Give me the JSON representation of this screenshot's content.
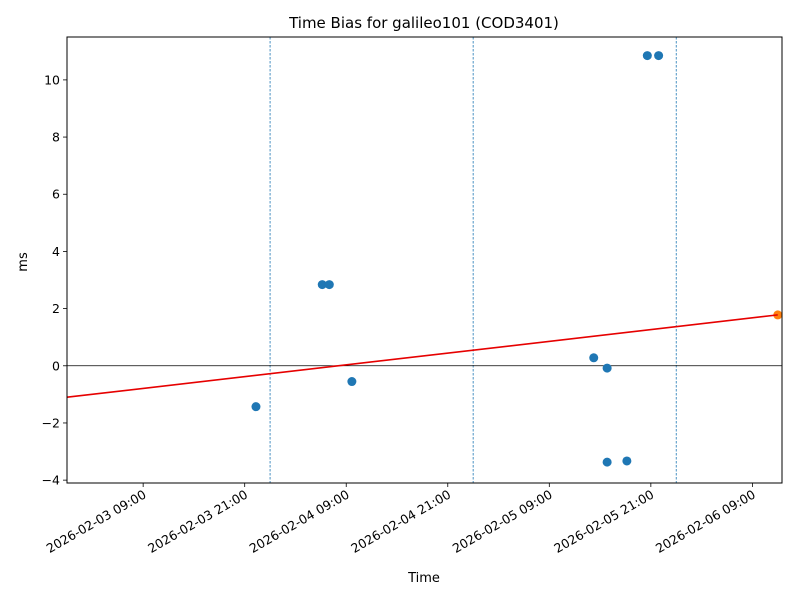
{
  "chart_data": {
    "type": "scatter",
    "title": "Time Bias for galileo101 (COD3401)",
    "xlabel": "Time",
    "ylabel": "ms",
    "xlim": [
      "2026-02-03 00:00",
      "2026-02-06 12:30"
    ],
    "ylim": [
      -4.1,
      11.5
    ],
    "y_ticks": [
      -4,
      -2,
      0,
      2,
      4,
      6,
      8,
      10
    ],
    "y_tick_labels": [
      "−4",
      "−2",
      "0",
      "2",
      "4",
      "6",
      "8",
      "10"
    ],
    "x_ticks": [
      "2026-02-03 09:00",
      "2026-02-03 21:00",
      "2026-02-04 09:00",
      "2026-02-04 21:00",
      "2026-02-05 09:00",
      "2026-02-05 21:00",
      "2026-02-06 09:00"
    ],
    "x_tick_labels": [
      "2026-02-03 09:00",
      "2026-02-03 21:00",
      "2026-02-04 09:00",
      "2026-02-04 21:00",
      "2026-02-05 09:00",
      "2026-02-05 21:00",
      "2026-02-06 09:00"
    ],
    "grid": false,
    "zero_line": 0,
    "day_boundaries": [
      "2026-02-03 00:00",
      "2026-02-04 00:00",
      "2026-02-05 00:00",
      "2026-02-06 00:00"
    ],
    "series": [
      {
        "kind": "points",
        "color": "#1f77b4",
        "points": [
          {
            "x": "2026-02-03 22:20",
            "y": -1.43
          },
          {
            "x": "2026-02-04 06:10",
            "y": 2.84
          },
          {
            "x": "2026-02-04 07:00",
            "y": 2.84
          },
          {
            "x": "2026-02-04 09:40",
            "y": -0.55
          },
          {
            "x": "2026-02-05 14:15",
            "y": 0.28
          },
          {
            "x": "2026-02-05 15:50",
            "y": -0.08
          },
          {
            "x": "2026-02-05 15:50",
            "y": -3.37
          },
          {
            "x": "2026-02-05 18:10",
            "y": -3.33
          },
          {
            "x": "2026-02-05 20:35",
            "y": 10.85
          },
          {
            "x": "2026-02-05 21:55",
            "y": 10.85
          }
        ]
      },
      {
        "kind": "points",
        "color": "#ff7f0e",
        "points": [
          {
            "x": "2026-02-06 12:00",
            "y": 1.78
          }
        ]
      },
      {
        "kind": "line",
        "color": "#e60000",
        "points": [
          {
            "x": "2026-02-03 00:00",
            "y": -1.1
          },
          {
            "x": "2026-02-06 12:00",
            "y": 1.78
          }
        ]
      }
    ]
  }
}
